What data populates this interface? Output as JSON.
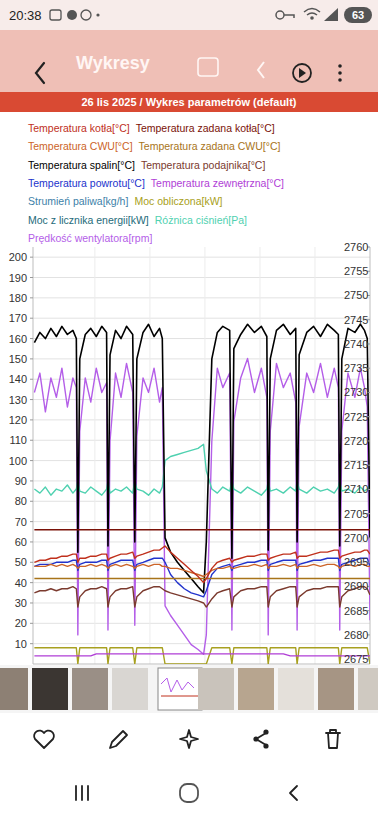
{
  "status_bar": {
    "time": "20:38",
    "battery": "63"
  },
  "header": {
    "title": "Wykresy"
  },
  "chart_data": {
    "type": "line",
    "title": "26 lis 2025 / Wykres parametrów (default)",
    "x": [
      -0.4,
      0,
      0.4,
      0.8,
      1.2,
      1.6,
      2,
      2.4,
      2.65,
      2.76,
      2.9,
      3.3,
      3.7,
      4.1,
      4.5,
      4.85,
      4.95,
      5.1,
      5.5,
      5.9,
      6.3,
      6.75,
      6.9,
      7.05,
      7.5,
      7.9,
      8.3,
      8.7,
      8.9,
      9.1,
      9.5,
      10,
      10.5,
      11,
      11.5,
      11.9,
      12.1,
      12.5,
      12.9,
      13.3,
      13.8,
      13.96,
      14.1,
      14.6,
      15.1,
      15.6,
      16.1,
      16.5,
      16.6,
      16.75,
      17.2,
      17.7,
      18.2,
      18.6,
      18.7,
      18.85,
      19.4,
      19.9,
      20.4,
      20.9,
      21.4,
      21.7,
      21.8,
      21.95,
      22.4,
      22.9,
      23.3,
      23.6,
      23.8,
      24
    ],
    "xlim": [
      -0.5,
      24
    ],
    "xticks": [
      4,
      8,
      12,
      16,
      20
    ],
    "ylim": [
      0,
      205
    ],
    "yticks": [
      10,
      20,
      30,
      40,
      50,
      60,
      70,
      80,
      90,
      100,
      110,
      120,
      130,
      140,
      150,
      160,
      170,
      180,
      190,
      200
    ],
    "y2lim": [
      2674,
      2760
    ],
    "y2ticks": [
      2675,
      2680,
      2685,
      2690,
      2695,
      2700,
      2705,
      2710,
      2715,
      2720,
      2725,
      2730,
      2735,
      2740,
      2745,
      2750,
      2755,
      2760
    ],
    "grid": true,
    "legend": "top",
    "tick_labels": "y",
    "series": [
      {
        "name": "Temperatura kotła[°C]",
        "color": "#c0301c",
        "values": [
          50,
          51,
          51,
          52,
          52,
          53,
          53,
          54,
          54,
          50,
          52,
          52,
          53,
          53,
          54,
          54,
          51,
          52,
          53,
          54,
          54,
          55,
          52,
          53,
          54,
          55,
          56,
          56,
          57,
          58,
          55,
          52,
          49,
          46,
          43,
          40,
          42,
          47,
          50,
          51,
          52,
          50,
          51,
          52,
          53,
          53,
          54,
          54,
          51,
          52,
          53,
          54,
          54,
          55,
          52,
          53,
          53,
          54,
          55,
          55,
          56,
          56,
          52,
          53,
          54,
          55,
          55,
          56,
          56,
          54
        ]
      },
      {
        "name": "Temperatura zadana kotła[°C]",
        "color": "#7a1208",
        "values": [
          66,
          66,
          66,
          66,
          66,
          66,
          66,
          66,
          66,
          66,
          66,
          66,
          66,
          66,
          66,
          66,
          66,
          66,
          66,
          66,
          66,
          66,
          66,
          66,
          66,
          66,
          66,
          66,
          66,
          66,
          66,
          66,
          66,
          66,
          66,
          66,
          66,
          66,
          66,
          66,
          66,
          66,
          66,
          66,
          66,
          66,
          66,
          66,
          66,
          66,
          66,
          66,
          66,
          66,
          66,
          66,
          66,
          66,
          66,
          66,
          66,
          66,
          66,
          66,
          66,
          66,
          66,
          66,
          66,
          66
        ]
      },
      {
        "name": "Temperatura CWU[°C]",
        "color": "#cc6428",
        "values": [
          48,
          48,
          48,
          49,
          48,
          49,
          48,
          49,
          48,
          47,
          48,
          48,
          49,
          48,
          49,
          48,
          47,
          48,
          49,
          48,
          49,
          48,
          47,
          48,
          49,
          48,
          49,
          49,
          48,
          48,
          47,
          47,
          46,
          45,
          44,
          43,
          44,
          46,
          47,
          47,
          48,
          47,
          47,
          48,
          48,
          49,
          48,
          49,
          47,
          48,
          48,
          49,
          48,
          49,
          47,
          48,
          48,
          49,
          48,
          49,
          49,
          48,
          47,
          48,
          49,
          48,
          49,
          49,
          48,
          48
        ]
      },
      {
        "name": "Temperatura zadana CWU[°C]",
        "color": "#a8741a",
        "values": [
          42,
          42,
          42,
          42,
          42,
          42,
          42,
          42,
          42,
          42,
          42,
          42,
          42,
          42,
          42,
          42,
          42,
          42,
          42,
          42,
          42,
          42,
          42,
          42,
          42,
          42,
          42,
          42,
          42,
          42,
          42,
          42,
          42,
          42,
          42,
          42,
          42,
          42,
          42,
          42,
          42,
          42,
          42,
          42,
          42,
          42,
          42,
          42,
          42,
          42,
          42,
          42,
          42,
          42,
          42,
          42,
          42,
          42,
          42,
          42,
          42,
          42,
          42,
          42,
          42,
          42,
          42,
          42,
          42,
          42
        ]
      },
      {
        "name": "Temperatura spalin[°C]",
        "color": "#000000",
        "values": [
          158,
          163,
          160,
          165,
          161,
          166,
          162,
          164,
          160,
          55,
          150,
          162,
          165,
          161,
          166,
          163,
          58,
          152,
          164,
          160,
          166,
          162,
          60,
          150,
          163,
          167,
          161,
          165,
          160,
          62,
          55,
          50,
          46,
          42,
          38,
          35,
          60,
          150,
          163,
          166,
          164,
          52,
          155,
          162,
          167,
          163,
          166,
          161,
          56,
          150,
          164,
          167,
          162,
          165,
          60,
          152,
          163,
          166,
          161,
          167,
          164,
          162,
          58,
          150,
          165,
          163,
          167,
          164,
          160,
          62
        ]
      },
      {
        "name": "Temperatura podajnika[°C]",
        "color": "#7b3a2e",
        "values": [
          35,
          36,
          36,
          37,
          36,
          37,
          37,
          38,
          37,
          28,
          33,
          36,
          37,
          37,
          38,
          37,
          28,
          33,
          36,
          37,
          37,
          38,
          28,
          33,
          36,
          37,
          38,
          38,
          37,
          36,
          35,
          34,
          33,
          32,
          31,
          30,
          28,
          32,
          35,
          36,
          37,
          28,
          33,
          36,
          37,
          37,
          38,
          38,
          28,
          33,
          36,
          37,
          38,
          38,
          28,
          33,
          36,
          37,
          37,
          38,
          38,
          38,
          28,
          33,
          36,
          37,
          38,
          38,
          37,
          34
        ]
      },
      {
        "name": "Temperatura powrotu[°C]",
        "color": "#2233cc",
        "values": [
          48,
          49,
          49,
          49,
          50,
          50,
          50,
          51,
          51,
          46,
          49,
          50,
          50,
          50,
          51,
          51,
          46,
          49,
          50,
          51,
          51,
          51,
          46,
          49,
          50,
          51,
          52,
          52,
          52,
          50,
          44,
          40,
          37,
          35,
          34,
          33,
          36,
          44,
          47,
          48,
          49,
          46,
          48,
          49,
          50,
          50,
          51,
          51,
          46,
          49,
          50,
          51,
          51,
          51,
          46,
          49,
          50,
          51,
          51,
          52,
          52,
          52,
          46,
          49,
          50,
          51,
          52,
          52,
          52,
          48
        ]
      },
      {
        "name": "Temperatura zewnętrzna[°C]",
        "color": "#b03ed6",
        "values": [
          4,
          4,
          4,
          4,
          4,
          4,
          4,
          4,
          4,
          4,
          4,
          4,
          4,
          5,
          5,
          5,
          5,
          5,
          5,
          5,
          5,
          5,
          5,
          5,
          5,
          5,
          5,
          5,
          5,
          5,
          5,
          5,
          5,
          5,
          5,
          5,
          5,
          5,
          5,
          5,
          5,
          5,
          5,
          5,
          5,
          5,
          5,
          5,
          5,
          5,
          5,
          5,
          4,
          4,
          4,
          4,
          4,
          4,
          4,
          4,
          4,
          4,
          4,
          4,
          4,
          4,
          4,
          4,
          4,
          4
        ]
      },
      {
        "name": "Strumień paliwa[kg/h]",
        "color": "#3d7fa8",
        "values": [
          null,
          null,
          null,
          null,
          null,
          null,
          null,
          null,
          null,
          null,
          null,
          null,
          null,
          null,
          null,
          null,
          null,
          null,
          null,
          null,
          null,
          null,
          null,
          null,
          null,
          null,
          null,
          null,
          null,
          null,
          null,
          null,
          null,
          null,
          null,
          null,
          null,
          null,
          null,
          null,
          null,
          null,
          null,
          null,
          null,
          null,
          null,
          null,
          null,
          null,
          null,
          null,
          null,
          null,
          null,
          null,
          null,
          null,
          null,
          null,
          null,
          null,
          null,
          null,
          null,
          null,
          null,
          null,
          null,
          null
        ]
      },
      {
        "name": "Moc obliczona[kW]",
        "color": "#a8a020",
        "values": [
          8,
          8,
          8,
          8,
          8,
          8,
          8,
          8,
          8,
          0,
          8,
          8,
          8,
          8,
          8,
          8,
          0,
          8,
          8,
          8,
          8,
          8,
          0,
          8,
          8,
          8,
          8,
          8,
          8,
          0,
          0,
          0,
          0,
          0,
          0,
          0,
          0,
          8,
          8,
          8,
          8,
          0,
          8,
          8,
          8,
          8,
          8,
          8,
          0,
          8,
          8,
          8,
          8,
          8,
          0,
          8,
          8,
          8,
          8,
          8,
          8,
          8,
          0,
          8,
          8,
          8,
          8,
          8,
          8,
          0
        ]
      },
      {
        "name": "Moc z licznika energii[kW]",
        "color": "#1e6b7a",
        "values": [
          null,
          null,
          null,
          null,
          null,
          null,
          null,
          null,
          null,
          null,
          null,
          null,
          null,
          null,
          null,
          null,
          null,
          null,
          null,
          null,
          null,
          null,
          null,
          null,
          null,
          null,
          null,
          null,
          null,
          null,
          null,
          null,
          null,
          null,
          null,
          null,
          null,
          null,
          null,
          null,
          null,
          null,
          null,
          null,
          null,
          null,
          null,
          null,
          null,
          null,
          null,
          null,
          null,
          null,
          null,
          null,
          null,
          null,
          null,
          null,
          null,
          null,
          null,
          null,
          null,
          null,
          null,
          null,
          null,
          null
        ]
      },
      {
        "name": "Różnica ciśnień[Pa]",
        "color": "#4fd1b0",
        "values": [
          86,
          84,
          87,
          83,
          86,
          85,
          88,
          84,
          86,
          90,
          85,
          84,
          87,
          85,
          83,
          86,
          90,
          84,
          86,
          85,
          87,
          84,
          90,
          86,
          85,
          83,
          86,
          84,
          87,
          100,
          102,
          103,
          104,
          105,
          106,
          108,
          95,
          86,
          84,
          87,
          85,
          90,
          86,
          84,
          87,
          85,
          83,
          86,
          90,
          85,
          86,
          84,
          87,
          85,
          90,
          86,
          84,
          87,
          85,
          86,
          84,
          87,
          90,
          85,
          86,
          84,
          87,
          85,
          86,
          88
        ]
      },
      {
        "name": "Prędkość wentylatora[rpm]",
        "color": "#b45ee8",
        "axis": "y2",
        "values": [
          2730,
          2734,
          2726,
          2733,
          2729,
          2735,
          2727,
          2733,
          2731,
          2680,
          2722,
          2733,
          2728,
          2735,
          2730,
          2732,
          2681,
          2720,
          2734,
          2729,
          2736,
          2730,
          2682,
          2721,
          2733,
          2730,
          2735,
          2728,
          2731,
          2686,
          2684,
          2682,
          2680,
          2678,
          2677,
          2676,
          2680,
          2720,
          2735,
          2731,
          2734,
          2681,
          2724,
          2733,
          2737,
          2730,
          2735,
          2729,
          2680,
          2722,
          2736,
          2731,
          2734,
          2728,
          2681,
          2723,
          2734,
          2730,
          2736,
          2729,
          2735,
          2731,
          2681,
          2722,
          2734,
          2729,
          2735,
          2731,
          2727,
          2683
        ]
      }
    ]
  }
}
